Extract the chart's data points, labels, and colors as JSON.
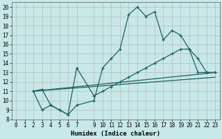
{
  "title": "",
  "xlabel": "Humidex (Indice chaleur)",
  "bg_color": "#c8e8e8",
  "grid_color": "#b0b0b0",
  "line_color": "#1a6060",
  "xlim": [
    -0.5,
    23.5
  ],
  "ylim": [
    8,
    20.5
  ],
  "xticks": [
    0,
    1,
    2,
    3,
    4,
    5,
    6,
    7,
    9,
    10,
    11,
    12,
    13,
    14,
    15,
    16,
    17,
    18,
    19,
    20,
    21,
    22,
    23
  ],
  "yticks": [
    8,
    9,
    10,
    11,
    12,
    13,
    14,
    15,
    16,
    17,
    18,
    19,
    20
  ],
  "line1_x": [
    2,
    3,
    4,
    5,
    6,
    7,
    9,
    10,
    11,
    12,
    13,
    14,
    15,
    16,
    17,
    18,
    19,
    20,
    21,
    22,
    23
  ],
  "line1_y": [
    11,
    9,
    9.5,
    9,
    8.5,
    13.5,
    10.5,
    11,
    11.5,
    12,
    12.5,
    13,
    13.5,
    14,
    14.5,
    15,
    15.5,
    15.5,
    13,
    13,
    13
  ],
  "line2_x": [
    2,
    3,
    4,
    5,
    6,
    7,
    9,
    10,
    11,
    12,
    13,
    14,
    15,
    16,
    17,
    18,
    19,
    20,
    21,
    22,
    23
  ],
  "line2_y": [
    11,
    11.2,
    9.5,
    9,
    8.5,
    9.5,
    10,
    13.5,
    14.5,
    15.5,
    19.2,
    20,
    19,
    19.5,
    16.5,
    17.5,
    17,
    15.5,
    14.5,
    13,
    13
  ],
  "line3_x": [
    2,
    23
  ],
  "line3_y": [
    11,
    13
  ],
  "line4_x": [
    2,
    23
  ],
  "line4_y": [
    11,
    12.5
  ]
}
